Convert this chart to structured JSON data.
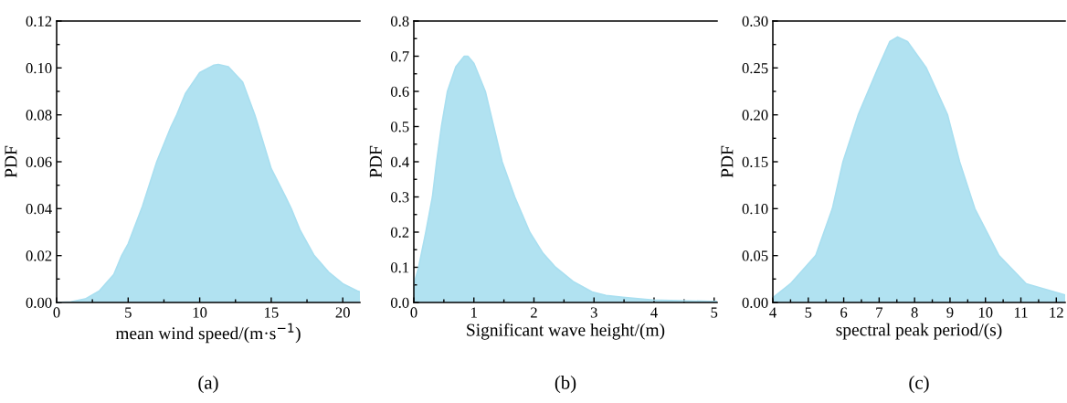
{
  "chart_data": [
    {
      "type": "area",
      "xlabel": "mean wind speed/(m·s$^{−1}$)",
      "ylabel": "PDF",
      "annotations": [
        "(a)"
      ],
      "x": [
        0,
        1,
        2,
        3,
        4,
        4.55,
        5,
        6,
        7,
        8,
        8.4,
        9,
        10,
        11,
        11.3,
        12,
        13,
        13.85,
        14,
        15,
        16,
        16.4,
        17,
        18,
        19,
        20,
        21,
        21.2
      ],
      "series": [
        {
          "color": "#a9dff0",
          "values": [
            0,
            0.0003,
            0.0015,
            0.005,
            0.012,
            0.02,
            0.025,
            0.041,
            0.06,
            0.075,
            0.08,
            0.089,
            0.098,
            0.1012,
            0.1015,
            0.1005,
            0.094,
            0.08,
            0.077,
            0.057,
            0.045,
            0.04,
            0.031,
            0.02,
            0.013,
            0.008,
            0.005,
            0.0045
          ]
        }
      ],
      "xlim": [
        0,
        21.2
      ],
      "ylim": [
        0,
        0.12
      ],
      "xticks": [
        0,
        5,
        10,
        15,
        20
      ],
      "yticks": [
        {
          "value": 0,
          "label": "0.00"
        },
        {
          "value": 0.02,
          "label": "0.02"
        },
        {
          "value": 0.04,
          "label": "0.04"
        },
        {
          "value": 0.06,
          "label": "0.06"
        },
        {
          "value": 0.08,
          "label": "0.08"
        },
        {
          "value": 0.1,
          "label": "0.10"
        },
        {
          "value": 0.12,
          "label": "0.12"
        }
      ]
    },
    {
      "type": "area",
      "xlabel": "Significant wave height/(m)",
      "ylabel": "PDF",
      "annotations": [
        "(b)"
      ],
      "x": [
        0,
        0.08,
        0.2,
        0.31,
        0.38,
        0.46,
        0.56,
        0.7,
        0.84,
        0.9,
        1.0,
        1.19,
        1.33,
        1.47,
        1.68,
        1.93,
        2.15,
        2.36,
        2.65,
        2.97,
        3.2,
        3.48,
        3.98,
        4.95,
        5.05
      ],
      "series": [
        {
          "color": "#a9dff0",
          "values": [
            0.05,
            0.1,
            0.2,
            0.3,
            0.4,
            0.5,
            0.6,
            0.67,
            0.7,
            0.7,
            0.68,
            0.6,
            0.5,
            0.4,
            0.3,
            0.2,
            0.14,
            0.1,
            0.06,
            0.03,
            0.02,
            0.015,
            0.007,
            0.003,
            0.003
          ]
        }
      ],
      "xlim": [
        0,
        5.05
      ],
      "ylim": [
        0,
        0.8
      ],
      "xticks": [
        0,
        1,
        2,
        3,
        4,
        5
      ],
      "yticks": [
        {
          "value": 0,
          "label": "0.0"
        },
        {
          "value": 0.1,
          "label": "0.1"
        },
        {
          "value": 0.2,
          "label": "0.2"
        },
        {
          "value": 0.3,
          "label": "0.3"
        },
        {
          "value": 0.4,
          "label": "0.4"
        },
        {
          "value": 0.5,
          "label": "0.5"
        },
        {
          "value": 0.6,
          "label": "0.6"
        },
        {
          "value": 0.7,
          "label": "0.7"
        },
        {
          "value": 0.8,
          "label": "0.8"
        }
      ]
    },
    {
      "type": "area",
      "xlabel": "spectral peak period/(s)",
      "ylabel": "PDF",
      "annotations": [
        "(c)"
      ],
      "x": [
        4,
        4.5,
        5.21,
        5.68,
        5.98,
        6.41,
        6.97,
        7.3,
        7.52,
        7.8,
        8.33,
        8.93,
        9.27,
        9.7,
        10.38,
        11.15,
        12.25
      ],
      "series": [
        {
          "color": "#a9dff0",
          "values": [
            0.005,
            0.02,
            0.05,
            0.1,
            0.15,
            0.2,
            0.25,
            0.278,
            0.283,
            0.278,
            0.25,
            0.2,
            0.15,
            0.1,
            0.05,
            0.02,
            0.008
          ]
        }
      ],
      "xlim": [
        4,
        12.25
      ],
      "ylim": [
        0,
        0.3
      ],
      "xticks": [
        4,
        5,
        6,
        7,
        8,
        9,
        10,
        11,
        12
      ],
      "yticks": [
        {
          "value": 0,
          "label": "0.00"
        },
        {
          "value": 0.05,
          "label": "0.05"
        },
        {
          "value": 0.1,
          "label": "0.10"
        },
        {
          "value": 0.15,
          "label": "0.15"
        },
        {
          "value": 0.2,
          "label": "0.20"
        },
        {
          "value": 0.25,
          "label": "0.25"
        },
        {
          "value": 0.3,
          "label": "0.30"
        }
      ]
    }
  ]
}
